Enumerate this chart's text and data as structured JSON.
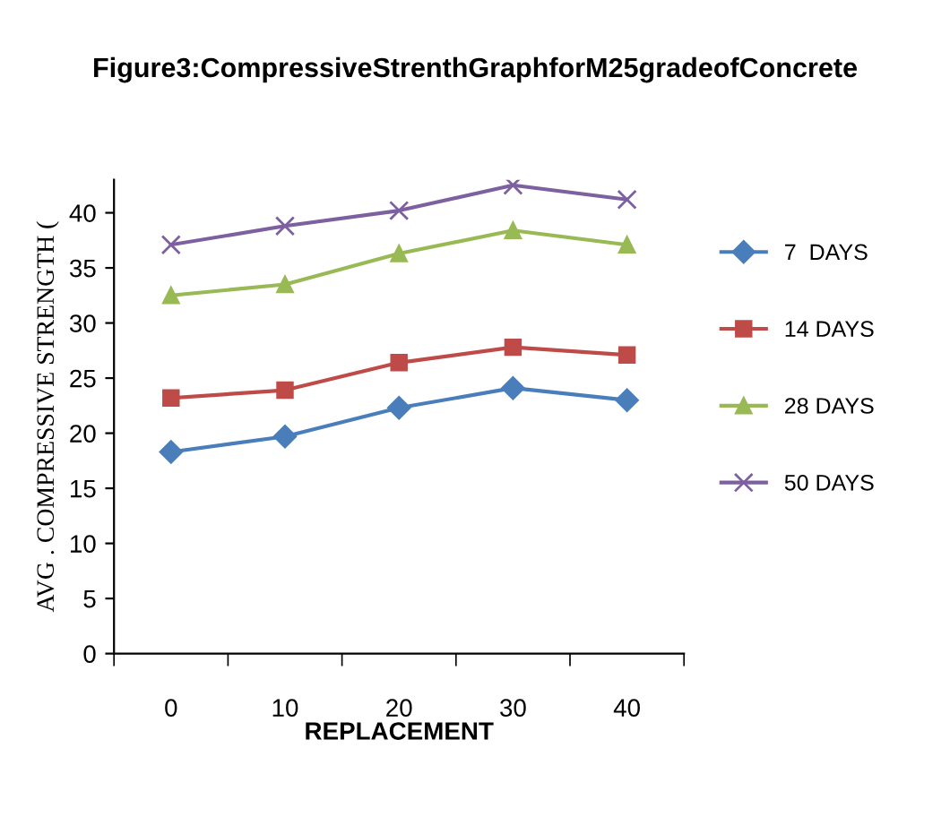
{
  "chart_data": {
    "type": "line",
    "title": "Figure3:CompressiveStrenthGraphforM25gradeofConcrete",
    "xlabel": "REPLACEMENT",
    "ylabel": "AVG . COMPRESSIVE STRENGTH (",
    "categories": [
      "0",
      "10",
      "20",
      "30",
      "40"
    ],
    "series": [
      {
        "name": "7  DAYS",
        "color": "#4a7ebb",
        "marker": "diamond",
        "values": [
          18.3,
          19.7,
          22.3,
          24.1,
          23.0
        ]
      },
      {
        "name": "14 DAYS",
        "color": "#be4b48",
        "marker": "square",
        "values": [
          23.2,
          23.9,
          26.4,
          27.8,
          27.1
        ]
      },
      {
        "name": "28 DAYS",
        "color": "#98b954",
        "marker": "triangle",
        "values": [
          32.5,
          33.5,
          36.3,
          38.4,
          37.1
        ]
      },
      {
        "name": "50 DAYS",
        "color": "#7d60a0",
        "marker": "cross",
        "values": [
          37.1,
          38.8,
          40.2,
          42.5,
          41.2
        ]
      }
    ],
    "ylim": [
      0,
      43
    ],
    "yticks": [
      0,
      5,
      10,
      15,
      20,
      25,
      30,
      35,
      40
    ],
    "grid": false,
    "legend": "right",
    "line_style": "solid"
  }
}
